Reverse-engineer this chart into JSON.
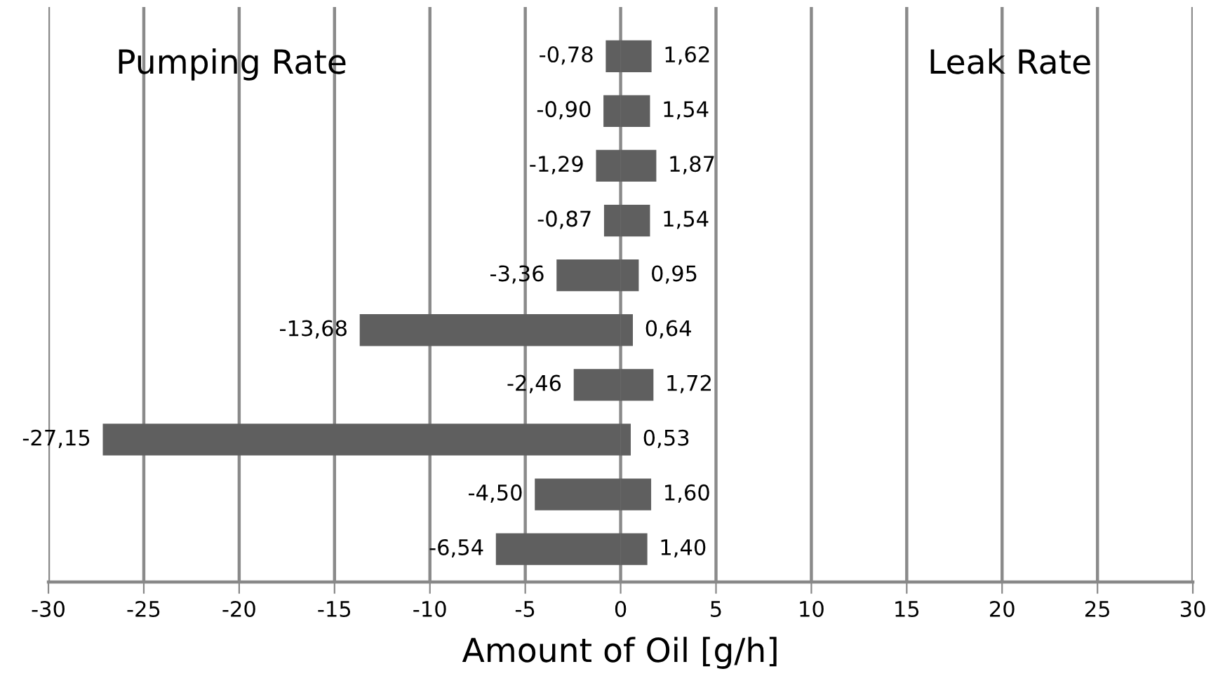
{
  "chart_data": {
    "type": "bar",
    "orientation": "horizontal",
    "stacked": true,
    "xlabel": "Amount of Oil [g/h]",
    "annotations": [
      "Pumping Rate",
      "Leak Rate"
    ],
    "categories": [
      null,
      null,
      null,
      null,
      null,
      null,
      null,
      null,
      null,
      null
    ],
    "series": [
      {
        "color": "#5f5f5f",
        "values": [
          -0.78,
          -0.9,
          -1.29,
          -0.87,
          -3.36,
          -13.68,
          -2.46,
          -27.15,
          -4.5,
          -6.54
        ],
        "value_labels": [
          "-0,78",
          "-0,90",
          "-1,29",
          "-0,87",
          "-3,36",
          "-13,68",
          "-2,46",
          "-27,15",
          "-4,50",
          "-6,54"
        ]
      },
      {
        "color": "#5f5f5f",
        "values": [
          1.62,
          1.54,
          1.87,
          1.54,
          0.95,
          0.64,
          1.72,
          0.53,
          1.6,
          1.4
        ],
        "value_labels": [
          "1,62",
          "1,54",
          "1,87",
          "1,54",
          "0,95",
          "0,64",
          "1,72",
          "0,53",
          "1,60",
          "1,40"
        ]
      }
    ],
    "xlim": [
      -30,
      30
    ],
    "xticks": [
      -30,
      -25,
      -20,
      -15,
      -10,
      -5,
      0,
      5,
      10,
      15,
      20,
      25,
      30
    ],
    "grid": "x",
    "legend": false
  }
}
